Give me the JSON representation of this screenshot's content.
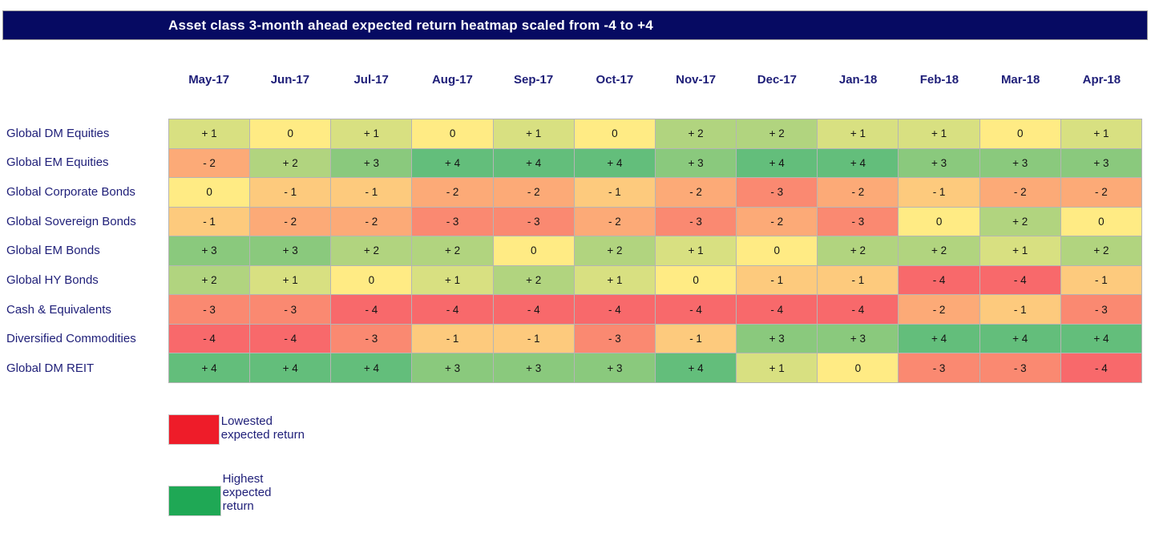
{
  "title": "Asset class 3-month ahead expected return heatmap scaled from -4 to +4",
  "colors": {
    "title_bar_bg": "#060A62",
    "title_text": "#FFFFFF",
    "header_text": "#1E1E78",
    "row_label_text": "#1E1E78",
    "grid_line": "#B5B5B5",
    "cell_text": "#141414"
  },
  "chart_data": {
    "type": "heatmap",
    "title": "Asset class 3-month ahead expected return heatmap scaled from -4 to +4",
    "scale_min": -4,
    "scale_max": 4,
    "columns": [
      "May-17",
      "Jun-17",
      "Jul-17",
      "Aug-17",
      "Sep-17",
      "Oct-17",
      "Nov-17",
      "Dec-17",
      "Jan-18",
      "Feb-18",
      "Mar-18",
      "Apr-18"
    ],
    "rows": [
      "Global DM Equities",
      "Global EM Equities",
      "Global Corporate Bonds",
      "Global Sovereign Bonds",
      "Global EM Bonds",
      "Global HY Bonds",
      "Cash & Equivalents",
      "Diversified Commodities",
      "Global DM REIT"
    ],
    "values": [
      [
        1,
        0,
        1,
        0,
        1,
        0,
        2,
        2,
        1,
        1,
        0,
        1
      ],
      [
        -2,
        2,
        3,
        4,
        4,
        4,
        3,
        4,
        4,
        3,
        3,
        3
      ],
      [
        0,
        -1,
        -1,
        -2,
        -2,
        -1,
        -2,
        -3,
        -2,
        -1,
        -2,
        -2
      ],
      [
        -1,
        -2,
        -2,
        -3,
        -3,
        -2,
        -3,
        -2,
        -3,
        0,
        2,
        0
      ],
      [
        3,
        3,
        2,
        2,
        0,
        2,
        1,
        0,
        2,
        2,
        1,
        2
      ],
      [
        2,
        1,
        0,
        1,
        2,
        1,
        0,
        -1,
        -1,
        -4,
        -4,
        -1
      ],
      [
        -3,
        -3,
        -4,
        -4,
        -4,
        -4,
        -4,
        -4,
        -4,
        -2,
        -1,
        -3
      ],
      [
        -4,
        -4,
        -3,
        -1,
        -1,
        -3,
        -1,
        3,
        3,
        4,
        4,
        4
      ],
      [
        4,
        4,
        4,
        3,
        3,
        3,
        4,
        1,
        0,
        -3,
        -3,
        -4
      ]
    ],
    "color_scale": {
      "-4": "#F8696B",
      "-3": "#FA8971",
      "-2": "#FCAA77",
      "-1": "#FDCA7D",
      "0": "#FFEB84",
      "1": "#D8E081",
      "2": "#B1D47F",
      "3": "#8AC97D",
      "4": "#63BE7B"
    },
    "legend": [
      {
        "label": "Lowested expected return",
        "color": "#EE1C29"
      },
      {
        "label": "Highest expected return",
        "color": "#1FA855"
      }
    ],
    "grid": false,
    "legend_position": "bottom-left"
  }
}
